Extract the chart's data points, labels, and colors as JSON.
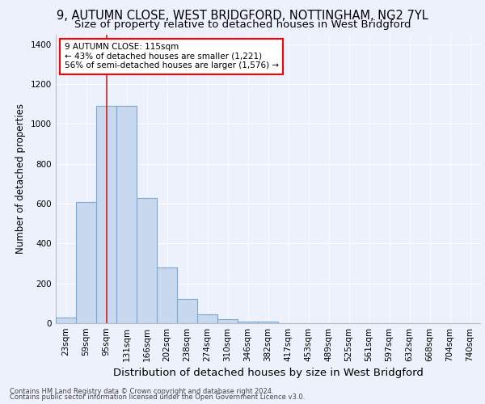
{
  "title_line1": "9, AUTUMN CLOSE, WEST BRIDGFORD, NOTTINGHAM, NG2 7YL",
  "title_line2": "Size of property relative to detached houses in West Bridgford",
  "xlabel": "Distribution of detached houses by size in West Bridgford",
  "ylabel": "Number of detached properties",
  "footnote1": "Contains HM Land Registry data © Crown copyright and database right 2024.",
  "footnote2": "Contains public sector information licensed under the Open Government Licence v3.0.",
  "categories": [
    "23sqm",
    "59sqm",
    "95sqm",
    "131sqm",
    "166sqm",
    "202sqm",
    "238sqm",
    "274sqm",
    "310sqm",
    "346sqm",
    "382sqm",
    "417sqm",
    "453sqm",
    "489sqm",
    "525sqm",
    "561sqm",
    "597sqm",
    "632sqm",
    "668sqm",
    "704sqm",
    "740sqm"
  ],
  "values": [
    30,
    610,
    1090,
    1090,
    630,
    280,
    120,
    45,
    22,
    10,
    10,
    0,
    0,
    0,
    0,
    0,
    0,
    0,
    0,
    0,
    0
  ],
  "bar_color": "#c8d8ee",
  "bar_edgecolor": "#7aa8d0",
  "bar_linewidth": 0.8,
  "bg_color": "#edf1fb",
  "plot_bg_color": "#edf1fb",
  "ylim": [
    0,
    1450
  ],
  "yticks": [
    0,
    200,
    400,
    600,
    800,
    1000,
    1200,
    1400
  ],
  "annotation_text": "9 AUTUMN CLOSE: 115sqm\n← 43% of detached houses are smaller (1,221)\n56% of semi-detached houses are larger (1,576) →",
  "annotation_box_color": "white",
  "annotation_box_edgecolor": "red",
  "marker_bar_index": 2,
  "marker_color": "#cc2222",
  "grid_color": "#ffffff",
  "title_fontsize": 10.5,
  "subtitle_fontsize": 9.5,
  "xlabel_fontsize": 9.5,
  "ylabel_fontsize": 8.5,
  "tick_fontsize": 7.5,
  "annot_fontsize": 7.5,
  "footnote_fontsize": 6.0
}
